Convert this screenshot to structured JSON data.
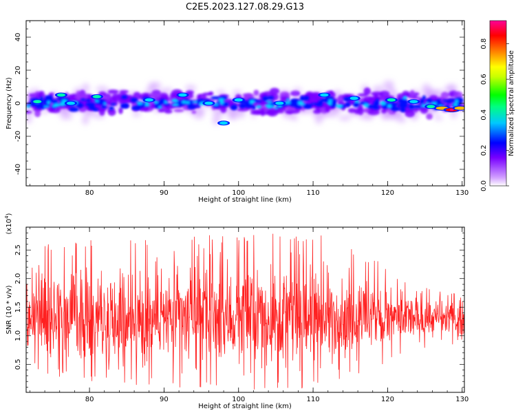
{
  "title": "C2E5.2023.127.08.29.G13",
  "chart_data": [
    {
      "type": "heatmap",
      "xlabel": "Height of straight line (km)",
      "ylabel": "Frequency (Hz)",
      "xlim": [
        71.5,
        130.3
      ],
      "ylim": [
        -50,
        50
      ],
      "x_ticks": [
        80,
        90,
        100,
        110,
        120,
        130
      ],
      "y_ticks": [
        -40,
        -20,
        0,
        20,
        40
      ],
      "colorbar": {
        "label": "Normalized spectral amplitude",
        "range": [
          0,
          0.93
        ],
        "ticks": [
          "0.0",
          "0.2",
          "0.4",
          "0.6",
          "0.8"
        ],
        "colors": [
          "#ffffff",
          "#d2a0ff",
          "#7800ff",
          "#0000ff",
          "#00dcff",
          "#00ff80",
          "#00ff00",
          "#c8ff00",
          "#ffff00",
          "#ff7800",
          "#ff0000",
          "#ff0096"
        ]
      },
      "description": "Spectral amplitude band centered near 0 Hz spanning roughly -20 to +20 Hz, strongest (red) near 127-130 km around -4 Hz",
      "hotspots": [
        {
          "x": 73.0,
          "y": 1,
          "amp": 0.45
        },
        {
          "x": 76.2,
          "y": 5,
          "amp": 0.4
        },
        {
          "x": 77.5,
          "y": 0,
          "amp": 0.35
        },
        {
          "x": 81.0,
          "y": 4,
          "amp": 0.4
        },
        {
          "x": 88.0,
          "y": 2,
          "amp": 0.3
        },
        {
          "x": 92.5,
          "y": 5,
          "amp": 0.35
        },
        {
          "x": 96.0,
          "y": 0,
          "amp": 0.3
        },
        {
          "x": 98.0,
          "y": -12,
          "amp": 0.3
        },
        {
          "x": 100.0,
          "y": 2,
          "amp": 0.35
        },
        {
          "x": 105.5,
          "y": 0,
          "amp": 0.3
        },
        {
          "x": 111.5,
          "y": 5,
          "amp": 0.3
        },
        {
          "x": 115.5,
          "y": 3,
          "amp": 0.3
        },
        {
          "x": 120.5,
          "y": 2,
          "amp": 0.4
        },
        {
          "x": 123.5,
          "y": 1,
          "amp": 0.35
        },
        {
          "x": 125.8,
          "y": -2,
          "amp": 0.45
        },
        {
          "x": 127.3,
          "y": -3,
          "amp": 0.7
        },
        {
          "x": 128.6,
          "y": -4,
          "amp": 0.9
        },
        {
          "x": 129.8,
          "y": -3,
          "amp": 0.7
        }
      ]
    },
    {
      "type": "line",
      "xlabel": "Height of straight line (km)",
      "ylabel": "SNR (10 * v/v)",
      "y_multiplier": "(x10",
      "y_multiplier_exp": "4",
      "xlim": [
        71.5,
        130.3
      ],
      "ylim": [
        0.01,
        2.9
      ],
      "x_ticks": [
        80,
        90,
        100,
        110,
        120,
        130
      ],
      "y_ticks": [
        "0.5",
        "1.0",
        "1.5",
        "2.0",
        "2.5"
      ],
      "color": "#ff2020",
      "description": "Dense noisy SNR trace around 1.3 (x10^4); envelope roughly 0.1-2.9 for 72-115 km, narrowing to about 0.8-1.9 toward 130 km",
      "envelope": [
        {
          "x": 72,
          "low": 0.4,
          "high": 2.6
        },
        {
          "x": 80,
          "low": 0.15,
          "high": 2.7
        },
        {
          "x": 90,
          "low": 0.1,
          "high": 2.7
        },
        {
          "x": 100,
          "low": 0.05,
          "high": 2.8
        },
        {
          "x": 110,
          "low": 0.05,
          "high": 2.8
        },
        {
          "x": 115,
          "low": 0.3,
          "high": 2.6
        },
        {
          "x": 120,
          "low": 0.45,
          "high": 2.2
        },
        {
          "x": 125,
          "low": 0.75,
          "high": 1.9
        },
        {
          "x": 130,
          "low": 0.85,
          "high": 1.7
        }
      ]
    }
  ]
}
